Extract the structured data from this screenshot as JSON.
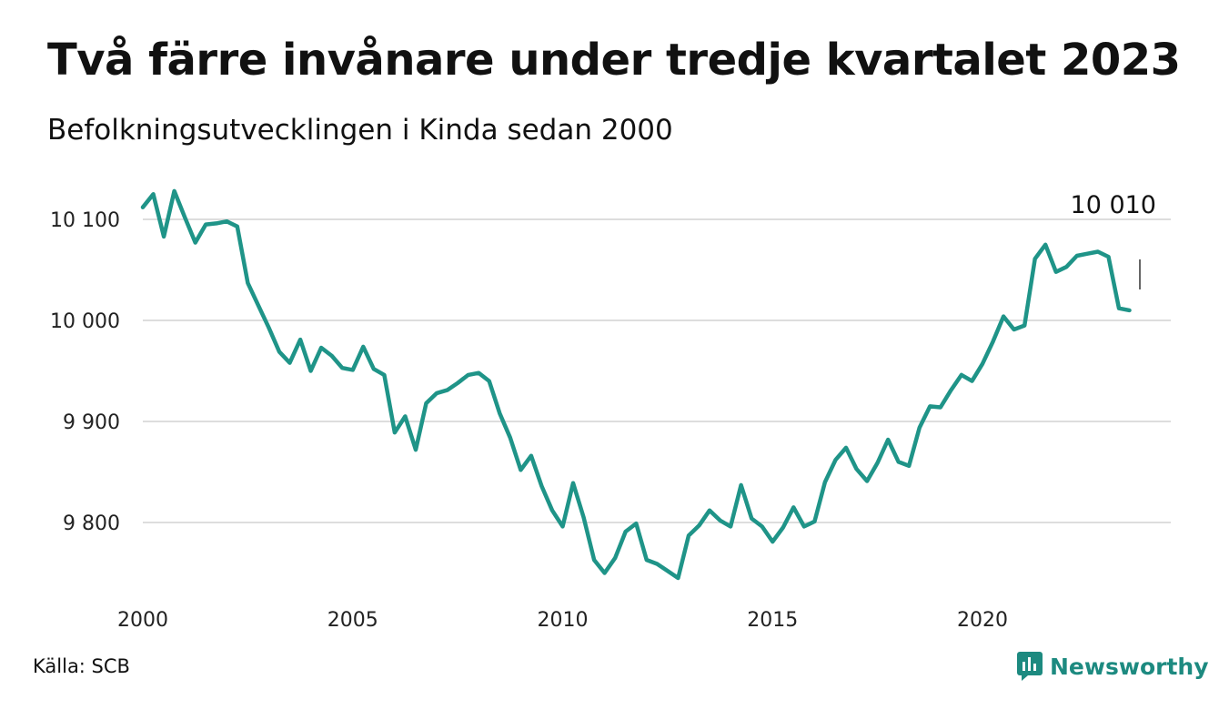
{
  "title": "Två färre invånare under tredje kvartalet 2023",
  "subtitle": "Befolkningsutvecklingen i Kinda sedan 2000",
  "source": "Källa: SCB",
  "brand": "Newsworthy",
  "colors": {
    "line": "#1f9488",
    "grid": "#dddddd",
    "brand": "#1d8a80"
  },
  "chart_data": {
    "type": "line",
    "x_start": 2000,
    "x_step": 0.25,
    "values": [
      10112,
      10125,
      10083,
      10128,
      10102,
      10077,
      10095,
      10096,
      10098,
      10093,
      10037,
      10015,
      9993,
      9969,
      9958,
      9981,
      9950,
      9973,
      9965,
      9953,
      9951,
      9974,
      9952,
      9946,
      9889,
      9905,
      9872,
      9918,
      9928,
      9931,
      9938,
      9946,
      9948,
      9940,
      9908,
      9884,
      9852,
      9866,
      9836,
      9812,
      9796,
      9839,
      9805,
      9763,
      9750,
      9765,
      9791,
      9799,
      9763,
      9759,
      9752,
      9745,
      9787,
      9797,
      9812,
      9802,
      9796,
      9837,
      9804,
      9796,
      9781,
      9795,
      9815,
      9796,
      9801,
      9840,
      9862,
      9874,
      9853,
      9841,
      9859,
      9882,
      9860,
      9856,
      9894,
      9915,
      9914,
      9931,
      9946,
      9940,
      9957,
      9979,
      10004,
      9991,
      9995,
      10061,
      10075,
      10048,
      10053,
      10064,
      10066,
      10068,
      10063,
      10012,
      10010
    ],
    "xlim": [
      2000,
      2024.1
    ],
    "ylim": [
      9740,
      10132
    ],
    "x_ticks": [
      2000,
      2005,
      2010,
      2015,
      2020
    ],
    "x_tick_labels": [
      "2000",
      "2005",
      "2010",
      "2015",
      "2020"
    ],
    "y_ticks": [
      9800,
      9900,
      10000,
      10100
    ],
    "y_tick_labels": [
      "9 800",
      "9 900",
      "10 000",
      "10 100"
    ],
    "grid": "horizontal",
    "last_value_label": "10 010"
  }
}
